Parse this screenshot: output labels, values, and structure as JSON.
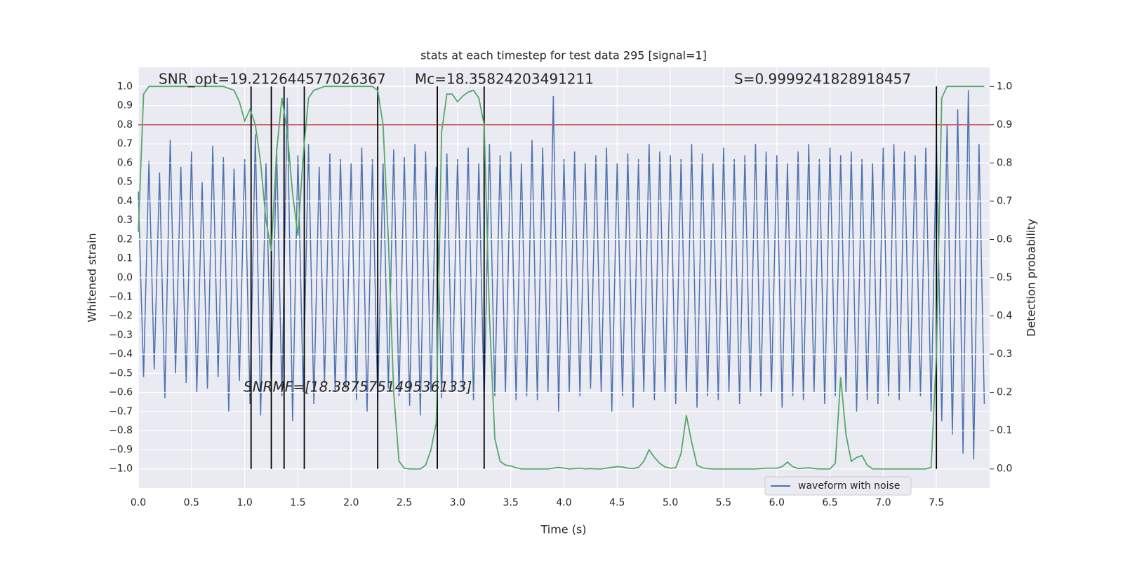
{
  "chart_data": {
    "type": "line",
    "title": "stats at each timestep for test data 295 [signal=1]",
    "xlabel": "Time (s)",
    "ylabel": "Whitened strain",
    "y2label": "Detection probability",
    "annotations": [
      "SNR_opt=19.212644577026367",
      "Mc=18.35824203491211",
      "S=0.9999241828918457",
      "SNRMF=[18.387575149536133]"
    ],
    "x": [
      0,
      0.05,
      0.1,
      0.15,
      0.2,
      0.25,
      0.3,
      0.35,
      0.4,
      0.45,
      0.5,
      0.55,
      0.6,
      0.65,
      0.7,
      0.75,
      0.8,
      0.85,
      0.9,
      0.95,
      1,
      1.05,
      1.1,
      1.15,
      1.2,
      1.25,
      1.3,
      1.35,
      1.4,
      1.45,
      1.5,
      1.55,
      1.6,
      1.65,
      1.7,
      1.75,
      1.8,
      1.85,
      1.9,
      1.95,
      2,
      2.05,
      2.1,
      2.15,
      2.2,
      2.25,
      2.3,
      2.35,
      2.4,
      2.45,
      2.5,
      2.55,
      2.6,
      2.65,
      2.7,
      2.75,
      2.8,
      2.85,
      2.9,
      2.95,
      3,
      3.05,
      3.1,
      3.15,
      3.2,
      3.25,
      3.3,
      3.35,
      3.4,
      3.45,
      3.5,
      3.55,
      3.6,
      3.65,
      3.7,
      3.75,
      3.8,
      3.85,
      3.9,
      3.95,
      4,
      4.05,
      4.1,
      4.15,
      4.2,
      4.25,
      4.3,
      4.35,
      4.4,
      4.45,
      4.5,
      4.55,
      4.6,
      4.65,
      4.7,
      4.75,
      4.8,
      4.85,
      4.9,
      4.95,
      5,
      5.05,
      5.1,
      5.15,
      5.2,
      5.25,
      5.3,
      5.35,
      5.4,
      5.45,
      5.5,
      5.55,
      5.6,
      5.65,
      5.7,
      5.75,
      5.8,
      5.85,
      5.9,
      5.95,
      6,
      6.05,
      6.1,
      6.15,
      6.2,
      6.25,
      6.3,
      6.35,
      6.4,
      6.45,
      6.5,
      6.55,
      6.6,
      6.65,
      6.7,
      6.75,
      6.8,
      6.85,
      6.9,
      6.95,
      7,
      7.05,
      7.1,
      7.15,
      7.2,
      7.25,
      7.3,
      7.35,
      7.4,
      7.45,
      7.5,
      7.55,
      7.6,
      7.65,
      7.7,
      7.75,
      7.8,
      7.85,
      7.9,
      7.95
    ],
    "series": [
      {
        "name": "waveform with noise",
        "color": "#4c72b0",
        "values": [
          0.45,
          -0.52,
          0.61,
          -0.48,
          0.55,
          -0.63,
          0.72,
          -0.5,
          0.58,
          -0.55,
          0.66,
          -0.6,
          0.5,
          -0.58,
          0.69,
          -0.52,
          0.63,
          -0.7,
          0.57,
          -0.54,
          0.62,
          -0.66,
          0.75,
          -0.72,
          0.6,
          -0.58,
          0.68,
          -0.62,
          0.94,
          -0.75,
          0.64,
          -0.6,
          0.7,
          -0.66,
          0.58,
          -0.55,
          0.65,
          -0.6,
          0.62,
          -0.58,
          0.6,
          -0.64,
          0.68,
          -0.7,
          0.62,
          -0.66,
          0.6,
          -0.58,
          0.67,
          -0.62,
          0.63,
          -0.67,
          0.7,
          -0.72,
          0.66,
          -0.6,
          0.58,
          -0.63,
          0.65,
          -0.6,
          0.62,
          -0.58,
          0.68,
          -0.64,
          0.6,
          -0.66,
          0.7,
          -0.62,
          0.64,
          -0.6,
          0.66,
          -0.64,
          0.6,
          -0.62,
          0.72,
          -0.64,
          0.68,
          -0.6,
          0.95,
          -0.7,
          0.62,
          -0.6,
          0.66,
          -0.62,
          0.6,
          -0.58,
          0.64,
          -0.6,
          0.68,
          -0.7,
          0.6,
          -0.62,
          0.65,
          -0.68,
          0.62,
          -0.6,
          0.7,
          -0.64,
          0.66,
          -0.6,
          0.64,
          -0.66,
          0.62,
          -0.6,
          0.7,
          -0.68,
          0.65,
          -0.62,
          0.6,
          -0.64,
          0.68,
          -0.6,
          0.62,
          -0.66,
          0.64,
          -0.6,
          0.7,
          -0.62,
          0.66,
          -0.6,
          0.64,
          -0.68,
          0.6,
          -0.62,
          0.66,
          -0.64,
          0.7,
          -0.6,
          0.62,
          -0.66,
          0.68,
          -0.62,
          0.64,
          -0.6,
          0.66,
          -0.7,
          0.62,
          -0.64,
          0.6,
          -0.66,
          0.68,
          -0.62,
          0.7,
          -0.64,
          0.66,
          -0.6,
          0.64,
          -0.62,
          0.68,
          -0.7,
          0.72,
          -0.75,
          0.8,
          -0.82,
          0.88,
          -0.92,
          0.98,
          -0.95,
          0.7,
          -0.66
        ]
      },
      {
        "color": "#55a868",
        "axis": "y2",
        "values": [
          0.62,
          0.98,
          1.0,
          1.0,
          1.0,
          1.0,
          1.0,
          1.0,
          1.0,
          1.0,
          1.0,
          1.0,
          1.0,
          1.0,
          1.0,
          1.0,
          1.0,
          0.995,
          0.99,
          0.96,
          0.91,
          0.94,
          0.9,
          0.8,
          0.65,
          0.57,
          0.83,
          0.97,
          0.88,
          0.72,
          0.61,
          0.82,
          0.97,
          0.99,
          0.995,
          1.0,
          1.0,
          1.0,
          1.0,
          1.0,
          1.0,
          1.0,
          1.0,
          1.0,
          1.0,
          0.99,
          0.9,
          0.6,
          0.2,
          0.02,
          0.002,
          0.0,
          0.0,
          0.0,
          0.01,
          0.05,
          0.12,
          0.88,
          0.98,
          0.98,
          0.96,
          0.975,
          0.985,
          0.99,
          0.97,
          0.9,
          0.4,
          0.08,
          0.02,
          0.01,
          0.008,
          0.003,
          0.0,
          0.0,
          0.0,
          0.0,
          0.0,
          0.0,
          0.002,
          0.004,
          0.002,
          0.0,
          0.001,
          0.002,
          0.0,
          0.001,
          0.0,
          0.0,
          0.002,
          0.004,
          0.006,
          0.005,
          0.002,
          0.001,
          0.004,
          0.02,
          0.05,
          0.03,
          0.015,
          0.005,
          0.002,
          0.003,
          0.04,
          0.14,
          0.07,
          0.01,
          0.003,
          0.001,
          0.0,
          0.0,
          0.0,
          0.0,
          0.0,
          0.0,
          0.0,
          0.0,
          0.0,
          0.001,
          0.002,
          0.002,
          0.002,
          0.006,
          0.018,
          0.006,
          0.001,
          0.002,
          0.003,
          0.001,
          0.0,
          0.0,
          0.0,
          0.015,
          0.24,
          0.09,
          0.02,
          0.03,
          0.035,
          0.01,
          0.0,
          0.0,
          0.0,
          0.0,
          0.0,
          0.0,
          0.0,
          0.0,
          0.0,
          0.0,
          0.0,
          0.004,
          0.3,
          0.97,
          1.0,
          1.0,
          1.0,
          1.0,
          1.0,
          1.0,
          1.0,
          1.0
        ]
      }
    ],
    "hline": {
      "y": 0.8,
      "color": "#c44e52"
    },
    "vlines": {
      "x": [
        1.06,
        1.25,
        1.37,
        1.56,
        2.25,
        2.81,
        3.25,
        7.5
      ],
      "ymin": -1.0,
      "ymax": 1.0,
      "color": "#000000"
    },
    "xlim": [
      0,
      8
    ],
    "ylim": [
      -1.1,
      1.1
    ],
    "y2lim": [
      -0.05,
      1.05
    ],
    "xticks": [
      {
        "value": 0,
        "label": "0.0"
      },
      {
        "value": 0.5,
        "label": "0.5"
      },
      {
        "value": 1,
        "label": "1.0"
      },
      {
        "value": 1.5,
        "label": "1.5"
      },
      {
        "value": 2,
        "label": "2.0"
      },
      {
        "value": 2.5,
        "label": "2.5"
      },
      {
        "value": 3,
        "label": "3.0"
      },
      {
        "value": 3.5,
        "label": "3.5"
      },
      {
        "value": 4,
        "label": "4.0"
      },
      {
        "value": 4.5,
        "label": "4.5"
      },
      {
        "value": 5,
        "label": "5.0"
      },
      {
        "value": 5.5,
        "label": "5.5"
      },
      {
        "value": 6,
        "label": "6.0"
      },
      {
        "value": 6.5,
        "label": "6.5"
      },
      {
        "value": 7,
        "label": "7.0"
      },
      {
        "value": 7.5,
        "label": "7.5"
      }
    ],
    "yticks": [
      {
        "value": -1,
        "label": "−1.0"
      },
      {
        "value": -0.9,
        "label": "−0.9"
      },
      {
        "value": -0.8,
        "label": "−0.8"
      },
      {
        "value": -0.7,
        "label": "−0.7"
      },
      {
        "value": -0.6,
        "label": "−0.6"
      },
      {
        "value": -0.5,
        "label": "−0.5"
      },
      {
        "value": -0.4,
        "label": "−0.4"
      },
      {
        "value": -0.3,
        "label": "−0.3"
      },
      {
        "value": -0.2,
        "label": "−0.2"
      },
      {
        "value": -0.1,
        "label": "−0.1"
      },
      {
        "value": 0,
        "label": "0.0"
      },
      {
        "value": 0.1,
        "label": "0.1"
      },
      {
        "value": 0.2,
        "label": "0.2"
      },
      {
        "value": 0.3,
        "label": "0.3"
      },
      {
        "value": 0.4,
        "label": "0.4"
      },
      {
        "value": 0.5,
        "label": "0.5"
      },
      {
        "value": 0.6,
        "label": "0.6"
      },
      {
        "value": 0.7,
        "label": "0.7"
      },
      {
        "value": 0.8,
        "label": "0.8"
      },
      {
        "value": 0.9,
        "label": "0.9"
      },
      {
        "value": 1,
        "label": "1.0"
      }
    ],
    "y2ticks": [
      {
        "value": 0,
        "label": "0.0"
      },
      {
        "value": 0.1,
        "label": "0.1"
      },
      {
        "value": 0.2,
        "label": "0.2"
      },
      {
        "value": 0.3,
        "label": "0.3"
      },
      {
        "value": 0.4,
        "label": "0.4"
      },
      {
        "value": 0.5,
        "label": "0.5"
      },
      {
        "value": 0.6,
        "label": "0.6"
      },
      {
        "value": 0.7,
        "label": "0.7"
      },
      {
        "value": 0.8,
        "label": "0.8"
      },
      {
        "value": 0.9,
        "label": "0.9"
      },
      {
        "value": 1,
        "label": "1.0"
      }
    ],
    "grid": true,
    "background": "#eaeaf2",
    "legend": "lower right"
  }
}
